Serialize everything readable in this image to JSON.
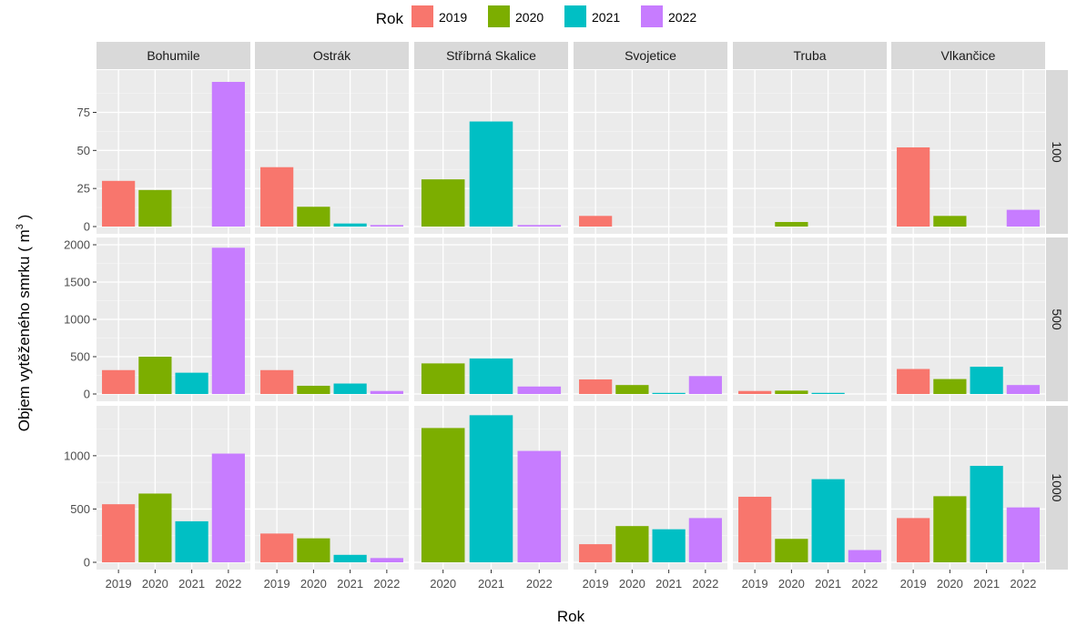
{
  "chart_data": {
    "type": "bar",
    "xlabel": "Rok",
    "ylabel": "Objem vytěženého smrku ( m",
    "ylabel_sup": "3",
    "ylabel_end": " )",
    "legend": {
      "title": "Rok",
      "position": "top",
      "entries": [
        "2019",
        "2020",
        "2021",
        "2022"
      ]
    },
    "colors": {
      "2019": "#F8766D",
      "2020": "#7CAE00",
      "2021": "#00BFC4",
      "2022": "#C77CFF"
    },
    "panel_background": "#EBEBEB",
    "grid": true,
    "columns": [
      "Bohumile",
      "Ostrák",
      "Stříbrná Skalice",
      "Svojetice",
      "Truba",
      "Vlkančice"
    ],
    "rows": [
      "100",
      "500",
      "1000"
    ],
    "x_ticks": [
      [
        "2019",
        "2020",
        "2021",
        "2022"
      ],
      [
        "2019",
        "2020",
        "2021",
        "2022"
      ],
      [
        "2020",
        "2021",
        "2022"
      ],
      [
        "2019",
        "2020",
        "2021",
        "2022"
      ],
      [
        "2019",
        "2020",
        "2021",
        "2022"
      ],
      [
        "2019",
        "2020",
        "2021",
        "2022"
      ]
    ],
    "y_axes": [
      {
        "ylim": [
          0,
          98
        ],
        "ticks": [
          0,
          25,
          50,
          75
        ]
      },
      {
        "ylim": [
          0,
          2000
        ],
        "ticks": [
          0,
          500,
          1000,
          1500,
          2000
        ]
      },
      {
        "ylim": [
          0,
          1400
        ],
        "ticks": [
          0,
          500,
          1000
        ]
      }
    ],
    "values": {
      "100": {
        "Bohumile": [
          30,
          24,
          0,
          95
        ],
        "Ostrák": [
          39,
          13,
          2,
          1
        ],
        "Stříbrná Skalice": [
          31,
          69,
          1
        ],
        "Svojetice": [
          7,
          0,
          0,
          0
        ],
        "Truba": [
          0,
          3,
          0,
          0
        ],
        "Vlkančice": [
          52,
          7,
          0,
          11
        ]
      },
      "500": {
        "Bohumile": [
          320,
          500,
          285,
          1960
        ],
        "Ostrák": [
          320,
          110,
          140,
          40
        ],
        "Stříbrná Skalice": [
          410,
          475,
          100
        ],
        "Svojetice": [
          195,
          120,
          10,
          240
        ],
        "Truba": [
          40,
          45,
          15,
          0
        ],
        "Vlkančice": [
          335,
          200,
          365,
          120
        ]
      },
      "1000": {
        "Bohumile": [
          545,
          645,
          385,
          1020
        ],
        "Ostrák": [
          270,
          225,
          70,
          40
        ],
        "Stříbrná Skalice": [
          1260,
          1380,
          1045
        ],
        "Svojetice": [
          170,
          340,
          310,
          415
        ],
        "Truba": [
          615,
          220,
          780,
          115
        ],
        "Vlkančice": [
          415,
          620,
          905,
          515
        ]
      }
    }
  }
}
